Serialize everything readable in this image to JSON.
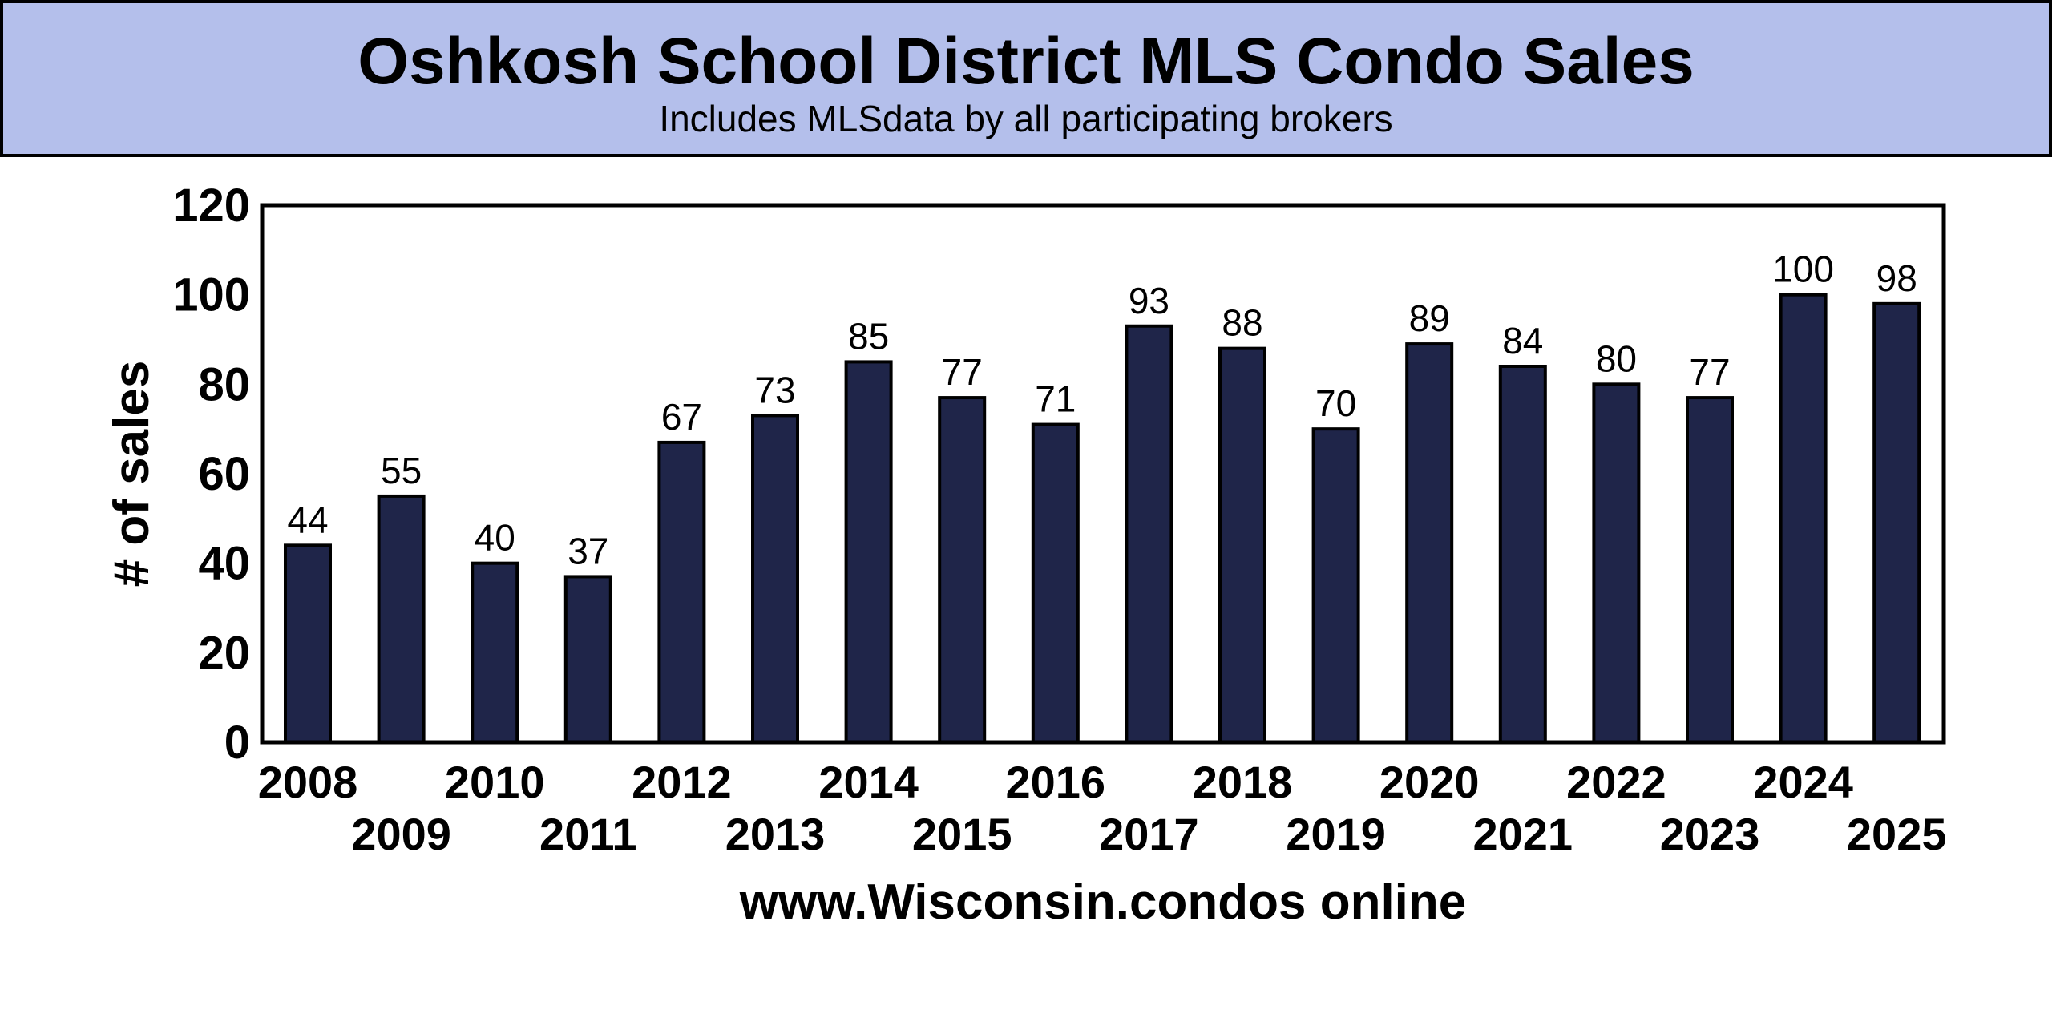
{
  "chart_data": {
    "type": "bar",
    "title": "Oshkosh School District MLS Condo Sales",
    "subtitle": "Includes MLSdata  by all participating brokers",
    "xlabel": "www.Wisconsin.condos online",
    "ylabel": "# of sales",
    "ylim": [
      0,
      120
    ],
    "yticks": [
      0,
      20,
      40,
      60,
      80,
      100,
      120
    ],
    "grid": false,
    "categories": [
      "2008",
      "2009",
      "2010",
      "2011",
      "2012",
      "2013",
      "2014",
      "2015",
      "2016",
      "2017",
      "2018",
      "2019",
      "2020",
      "2021",
      "2022",
      "2023",
      "2024",
      "2025"
    ],
    "values": [
      44,
      55,
      40,
      37,
      67,
      73,
      85,
      77,
      71,
      93,
      88,
      70,
      89,
      84,
      80,
      77,
      100,
      98
    ],
    "colors": {
      "bar": "#1f2549",
      "header": "#b4bfeb"
    }
  }
}
